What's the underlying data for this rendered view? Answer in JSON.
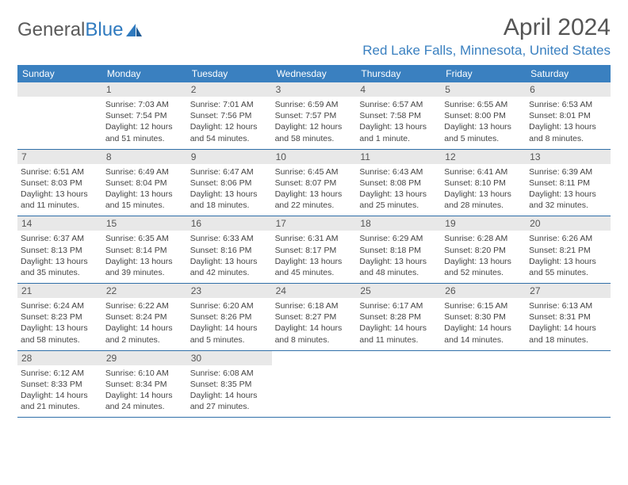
{
  "logo": {
    "text1": "General",
    "text2": "Blue"
  },
  "title": "April 2024",
  "location": "Red Lake Falls, Minnesota, United States",
  "weekdays": [
    "Sunday",
    "Monday",
    "Tuesday",
    "Wednesday",
    "Thursday",
    "Friday",
    "Saturday"
  ],
  "colors": {
    "header_bg": "#3a80c0",
    "border": "#2f6fa8",
    "daynum_bg": "#e8e8e8",
    "text": "#444444",
    "title": "#555555",
    "location": "#3a80c0"
  },
  "weeks": [
    [
      null,
      {
        "n": "1",
        "sr": "Sunrise: 7:03 AM",
        "ss": "Sunset: 7:54 PM",
        "d1": "Daylight: 12 hours",
        "d2": "and 51 minutes."
      },
      {
        "n": "2",
        "sr": "Sunrise: 7:01 AM",
        "ss": "Sunset: 7:56 PM",
        "d1": "Daylight: 12 hours",
        "d2": "and 54 minutes."
      },
      {
        "n": "3",
        "sr": "Sunrise: 6:59 AM",
        "ss": "Sunset: 7:57 PM",
        "d1": "Daylight: 12 hours",
        "d2": "and 58 minutes."
      },
      {
        "n": "4",
        "sr": "Sunrise: 6:57 AM",
        "ss": "Sunset: 7:58 PM",
        "d1": "Daylight: 13 hours",
        "d2": "and 1 minute."
      },
      {
        "n": "5",
        "sr": "Sunrise: 6:55 AM",
        "ss": "Sunset: 8:00 PM",
        "d1": "Daylight: 13 hours",
        "d2": "and 5 minutes."
      },
      {
        "n": "6",
        "sr": "Sunrise: 6:53 AM",
        "ss": "Sunset: 8:01 PM",
        "d1": "Daylight: 13 hours",
        "d2": "and 8 minutes."
      }
    ],
    [
      {
        "n": "7",
        "sr": "Sunrise: 6:51 AM",
        "ss": "Sunset: 8:03 PM",
        "d1": "Daylight: 13 hours",
        "d2": "and 11 minutes."
      },
      {
        "n": "8",
        "sr": "Sunrise: 6:49 AM",
        "ss": "Sunset: 8:04 PM",
        "d1": "Daylight: 13 hours",
        "d2": "and 15 minutes."
      },
      {
        "n": "9",
        "sr": "Sunrise: 6:47 AM",
        "ss": "Sunset: 8:06 PM",
        "d1": "Daylight: 13 hours",
        "d2": "and 18 minutes."
      },
      {
        "n": "10",
        "sr": "Sunrise: 6:45 AM",
        "ss": "Sunset: 8:07 PM",
        "d1": "Daylight: 13 hours",
        "d2": "and 22 minutes."
      },
      {
        "n": "11",
        "sr": "Sunrise: 6:43 AM",
        "ss": "Sunset: 8:08 PM",
        "d1": "Daylight: 13 hours",
        "d2": "and 25 minutes."
      },
      {
        "n": "12",
        "sr": "Sunrise: 6:41 AM",
        "ss": "Sunset: 8:10 PM",
        "d1": "Daylight: 13 hours",
        "d2": "and 28 minutes."
      },
      {
        "n": "13",
        "sr": "Sunrise: 6:39 AM",
        "ss": "Sunset: 8:11 PM",
        "d1": "Daylight: 13 hours",
        "d2": "and 32 minutes."
      }
    ],
    [
      {
        "n": "14",
        "sr": "Sunrise: 6:37 AM",
        "ss": "Sunset: 8:13 PM",
        "d1": "Daylight: 13 hours",
        "d2": "and 35 minutes."
      },
      {
        "n": "15",
        "sr": "Sunrise: 6:35 AM",
        "ss": "Sunset: 8:14 PM",
        "d1": "Daylight: 13 hours",
        "d2": "and 39 minutes."
      },
      {
        "n": "16",
        "sr": "Sunrise: 6:33 AM",
        "ss": "Sunset: 8:16 PM",
        "d1": "Daylight: 13 hours",
        "d2": "and 42 minutes."
      },
      {
        "n": "17",
        "sr": "Sunrise: 6:31 AM",
        "ss": "Sunset: 8:17 PM",
        "d1": "Daylight: 13 hours",
        "d2": "and 45 minutes."
      },
      {
        "n": "18",
        "sr": "Sunrise: 6:29 AM",
        "ss": "Sunset: 8:18 PM",
        "d1": "Daylight: 13 hours",
        "d2": "and 48 minutes."
      },
      {
        "n": "19",
        "sr": "Sunrise: 6:28 AM",
        "ss": "Sunset: 8:20 PM",
        "d1": "Daylight: 13 hours",
        "d2": "and 52 minutes."
      },
      {
        "n": "20",
        "sr": "Sunrise: 6:26 AM",
        "ss": "Sunset: 8:21 PM",
        "d1": "Daylight: 13 hours",
        "d2": "and 55 minutes."
      }
    ],
    [
      {
        "n": "21",
        "sr": "Sunrise: 6:24 AM",
        "ss": "Sunset: 8:23 PM",
        "d1": "Daylight: 13 hours",
        "d2": "and 58 minutes."
      },
      {
        "n": "22",
        "sr": "Sunrise: 6:22 AM",
        "ss": "Sunset: 8:24 PM",
        "d1": "Daylight: 14 hours",
        "d2": "and 2 minutes."
      },
      {
        "n": "23",
        "sr": "Sunrise: 6:20 AM",
        "ss": "Sunset: 8:26 PM",
        "d1": "Daylight: 14 hours",
        "d2": "and 5 minutes."
      },
      {
        "n": "24",
        "sr": "Sunrise: 6:18 AM",
        "ss": "Sunset: 8:27 PM",
        "d1": "Daylight: 14 hours",
        "d2": "and 8 minutes."
      },
      {
        "n": "25",
        "sr": "Sunrise: 6:17 AM",
        "ss": "Sunset: 8:28 PM",
        "d1": "Daylight: 14 hours",
        "d2": "and 11 minutes."
      },
      {
        "n": "26",
        "sr": "Sunrise: 6:15 AM",
        "ss": "Sunset: 8:30 PM",
        "d1": "Daylight: 14 hours",
        "d2": "and 14 minutes."
      },
      {
        "n": "27",
        "sr": "Sunrise: 6:13 AM",
        "ss": "Sunset: 8:31 PM",
        "d1": "Daylight: 14 hours",
        "d2": "and 18 minutes."
      }
    ],
    [
      {
        "n": "28",
        "sr": "Sunrise: 6:12 AM",
        "ss": "Sunset: 8:33 PM",
        "d1": "Daylight: 14 hours",
        "d2": "and 21 minutes."
      },
      {
        "n": "29",
        "sr": "Sunrise: 6:10 AM",
        "ss": "Sunset: 8:34 PM",
        "d1": "Daylight: 14 hours",
        "d2": "and 24 minutes."
      },
      {
        "n": "30",
        "sr": "Sunrise: 6:08 AM",
        "ss": "Sunset: 8:35 PM",
        "d1": "Daylight: 14 hours",
        "d2": "and 27 minutes."
      },
      null,
      null,
      null,
      null
    ]
  ]
}
